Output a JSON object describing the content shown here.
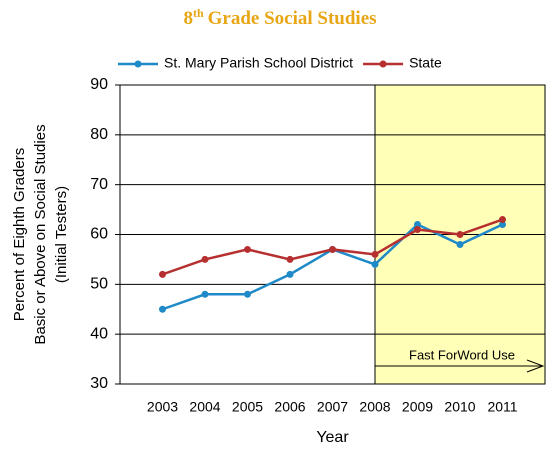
{
  "chart_data": {
    "type": "line",
    "title": {
      "number": "8",
      "superscript": "th",
      "text": "Grade Social Studies"
    },
    "categories": [
      "2003",
      "2004",
      "2005",
      "2006",
      "2007",
      "2008",
      "2009",
      "2010",
      "2011"
    ],
    "series": [
      {
        "name": "St. Mary Parish School District",
        "color": "#1f8ac8",
        "values": [
          45,
          48,
          48,
          52,
          57,
          54,
          62,
          58,
          62
        ]
      },
      {
        "name": "State",
        "color": "#b73030",
        "values": [
          52,
          55,
          57,
          55,
          57,
          56,
          61,
          60,
          63
        ]
      }
    ],
    "ylim": [
      30,
      90
    ],
    "yticks": [
      30,
      40,
      50,
      60,
      70,
      80,
      90
    ],
    "grid": true,
    "y_label": [
      "Percent of Eighth Graders",
      "Basic or Above on Social Studies",
      "(Initial Testers)"
    ],
    "x_label": "Year",
    "highlight": {
      "from": "2008",
      "color": "#ffffb8",
      "annotation": "Fast ForWord Use"
    },
    "legend": "top"
  }
}
